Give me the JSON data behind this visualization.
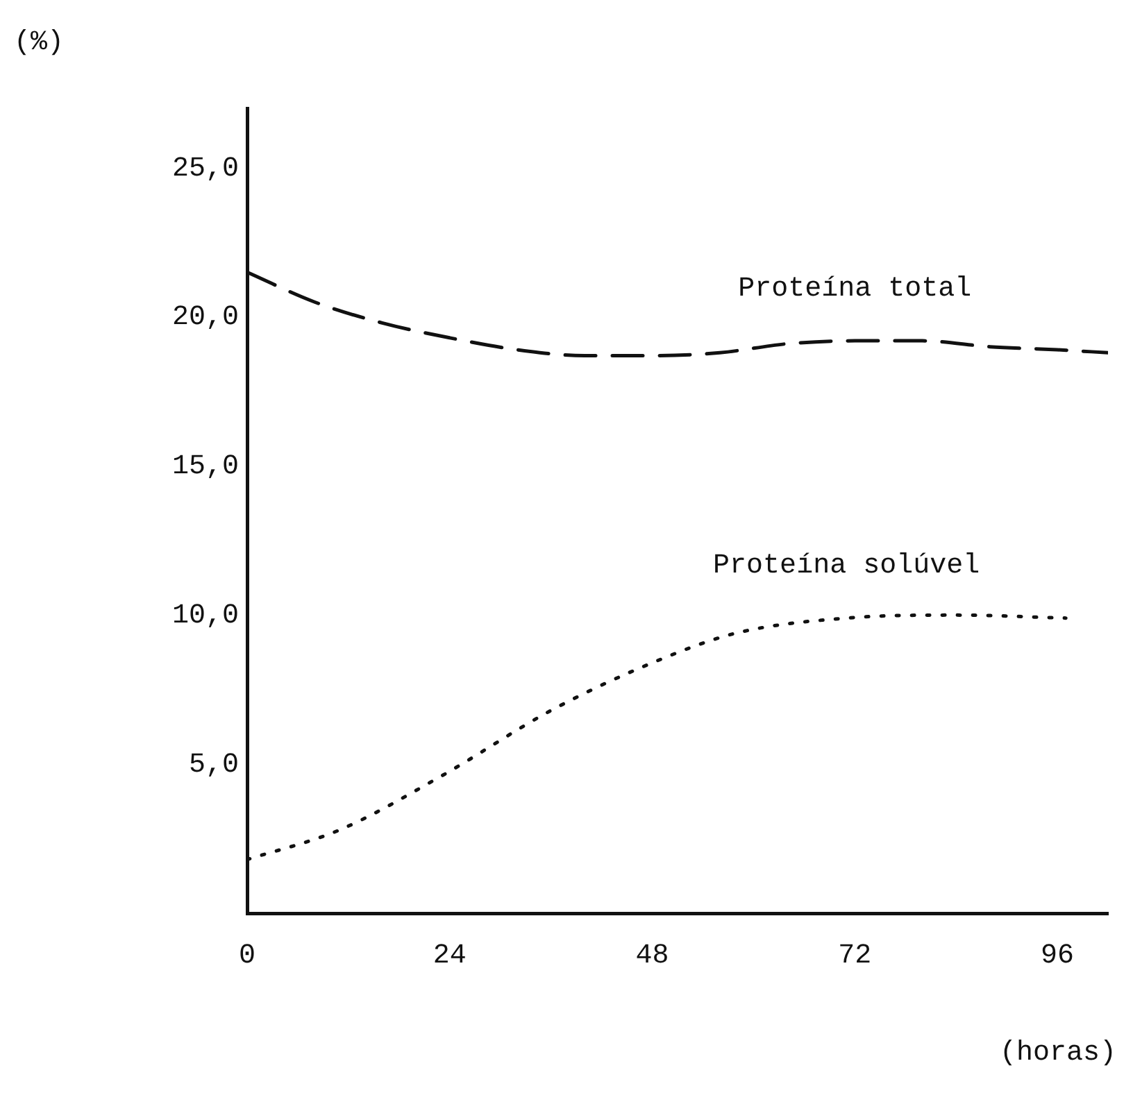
{
  "chart_data": {
    "type": "line",
    "xlabel": "(horas)",
    "ylabel": "(%)",
    "xlim": [
      0,
      102
    ],
    "xticks": [
      0,
      24,
      48,
      72,
      96
    ],
    "ylim": [
      0,
      27
    ],
    "yticks": [
      {
        "value": 5,
        "label": "5,0"
      },
      {
        "value": 10,
        "label": "10,0"
      },
      {
        "value": 15,
        "label": "15,0"
      },
      {
        "value": 20,
        "label": "20,0"
      },
      {
        "value": 25,
        "label": "25,0"
      }
    ],
    "series": [
      {
        "name": "Proteína total",
        "color": "#111111",
        "line_style": "dashed",
        "x": [
          0,
          8,
          16,
          24,
          32,
          40,
          48,
          56,
          64,
          72,
          80,
          88,
          96,
          102
        ],
        "values": [
          21.5,
          20.5,
          19.8,
          19.3,
          18.9,
          18.7,
          18.7,
          18.8,
          19.1,
          19.2,
          19.2,
          19.0,
          18.9,
          18.8
        ]
      },
      {
        "name": "Proteína solúvel",
        "color": "#111111",
        "line_style": "dotted",
        "x": [
          0,
          11,
          23,
          36,
          48,
          58,
          71,
          84,
          97
        ],
        "values": [
          1.8,
          2.8,
          4.6,
          6.8,
          8.4,
          9.4,
          9.9,
          10.0,
          9.9
        ]
      }
    ],
    "marker": "none",
    "grid": false,
    "legend": false
  }
}
